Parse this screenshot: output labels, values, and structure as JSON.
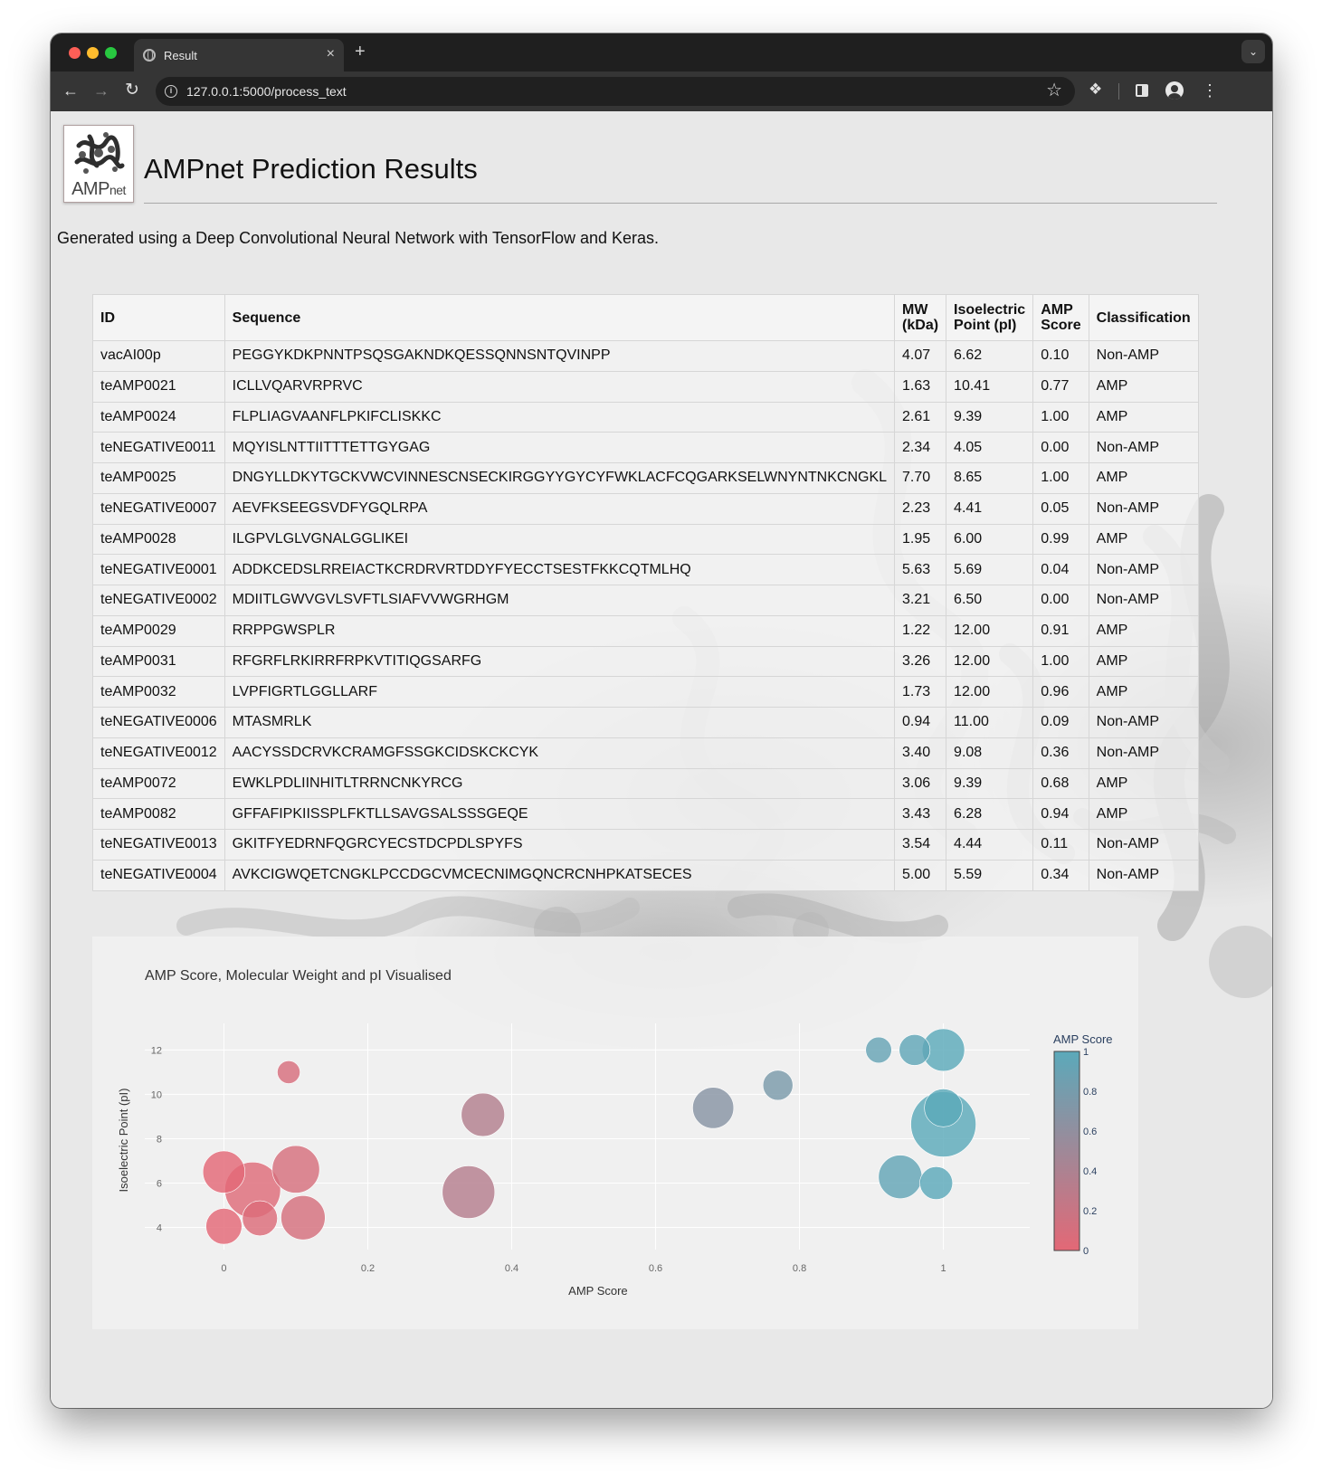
{
  "browser": {
    "tab_title": "Result",
    "url": "127.0.0.1:5000/process_text",
    "new_tab_label": "+",
    "close_label": "×"
  },
  "page": {
    "logo_text_main": "AMP",
    "logo_text_sub": "net",
    "title": "AMPnet Prediction Results",
    "subtitle": "Generated using a Deep Convolutional Neural Network with TensorFlow and Keras."
  },
  "table": {
    "headers": {
      "id": "ID",
      "sequence": "Sequence",
      "mw_line1": "MW",
      "mw_line2": "(kDa)",
      "pi_line1": "Isoelectric",
      "pi_line2": "Point (pI)",
      "score_line1": "AMP",
      "score_line2": "Score",
      "classification": "Classification"
    },
    "rows": [
      {
        "id": "vacAI00p",
        "sequence": "PEGGYKDKPNNTPSQSGAKNDKQESSQNNSNTQVINPP",
        "mw": "4.07",
        "pi": "6.62",
        "score": "0.10",
        "cls": "Non-AMP"
      },
      {
        "id": "teAMP0021",
        "sequence": "ICLLVQARVRPRVC",
        "mw": "1.63",
        "pi": "10.41",
        "score": "0.77",
        "cls": "AMP"
      },
      {
        "id": "teAMP0024",
        "sequence": "FLPLIAGVAANFLPKIFCLISKKC",
        "mw": "2.61",
        "pi": "9.39",
        "score": "1.00",
        "cls": "AMP"
      },
      {
        "id": "teNEGATIVE0011",
        "sequence": "MQYISLNTTIITTTETTGYGAG",
        "mw": "2.34",
        "pi": "4.05",
        "score": "0.00",
        "cls": "Non-AMP"
      },
      {
        "id": "teAMP0025",
        "sequence": "DNGYLLDKYTGCKVWCVINNESCNSECKIRGGYYGYCYFWKLACFCQGARKSELWNYNTNKCNGKL",
        "mw": "7.70",
        "pi": "8.65",
        "score": "1.00",
        "cls": "AMP"
      },
      {
        "id": "teNEGATIVE0007",
        "sequence": "AEVFKSEEGSVDFYGQLRPA",
        "mw": "2.23",
        "pi": "4.41",
        "score": "0.05",
        "cls": "Non-AMP"
      },
      {
        "id": "teAMP0028",
        "sequence": "ILGPVLGLVGNALGGLIKEI",
        "mw": "1.95",
        "pi": "6.00",
        "score": "0.99",
        "cls": "AMP"
      },
      {
        "id": "teNEGATIVE0001",
        "sequence": "ADDKCEDSLRREIACTKCRDRVRTDDYFYECCTSESTFKKCQTMLHQ",
        "mw": "5.63",
        "pi": "5.69",
        "score": "0.04",
        "cls": "Non-AMP"
      },
      {
        "id": "teNEGATIVE0002",
        "sequence": "MDIITLGWVGVLSVFTLSIAFVVWGRHGM",
        "mw": "3.21",
        "pi": "6.50",
        "score": "0.00",
        "cls": "Non-AMP"
      },
      {
        "id": "teAMP0029",
        "sequence": "RRPPGWSPLR",
        "mw": "1.22",
        "pi": "12.00",
        "score": "0.91",
        "cls": "AMP"
      },
      {
        "id": "teAMP0031",
        "sequence": "RFGRFLRKIRRFRPKVTITIQGSARFG",
        "mw": "3.26",
        "pi": "12.00",
        "score": "1.00",
        "cls": "AMP"
      },
      {
        "id": "teAMP0032",
        "sequence": "LVPFIGRTLGGLLARF",
        "mw": "1.73",
        "pi": "12.00",
        "score": "0.96",
        "cls": "AMP"
      },
      {
        "id": "teNEGATIVE0006",
        "sequence": "MTASMRLK",
        "mw": "0.94",
        "pi": "11.00",
        "score": "0.09",
        "cls": "Non-AMP"
      },
      {
        "id": "teNEGATIVE0012",
        "sequence": "AACYSSDCRVKCRAMGFSSGKCIDSKCKCYK",
        "mw": "3.40",
        "pi": "9.08",
        "score": "0.36",
        "cls": "Non-AMP"
      },
      {
        "id": "teAMP0072",
        "sequence": "EWKLPDLIINHITLTRRNCNKYRCG",
        "mw": "3.06",
        "pi": "9.39",
        "score": "0.68",
        "cls": "AMP"
      },
      {
        "id": "teAMP0082",
        "sequence": "GFFAFIPKIISSPLFKTLLSAVGSALSSSGEQE",
        "mw": "3.43",
        "pi": "6.28",
        "score": "0.94",
        "cls": "AMP"
      },
      {
        "id": "teNEGATIVE0013",
        "sequence": "GKITFYEDRNFQGRCYECSTDCPDLSPYFS",
        "mw": "3.54",
        "pi": "4.44",
        "score": "0.11",
        "cls": "Non-AMP"
      },
      {
        "id": "teNEGATIVE0004",
        "sequence": "AVKCIGWQETCNGKLPCCDGCVMCECNIMGQNCRCNHPKATSECES",
        "mw": "5.00",
        "pi": "5.59",
        "score": "0.34",
        "cls": "Non-AMP"
      }
    ]
  },
  "chart_data": {
    "type": "scatter",
    "title": "AMP Score, Molecular Weight and pI Visualised",
    "xlabel": "AMP Score",
    "ylabel": "Isoelectric Point (pI)",
    "xlim": [
      -0.11,
      1.12
    ],
    "ylim": [
      3.0,
      13.2
    ],
    "xticks": [
      0,
      0.2,
      0.4,
      0.6,
      0.8,
      1
    ],
    "xtick_labels": [
      "0",
      "0.2",
      "0.4",
      "0.6",
      "0.8",
      "1"
    ],
    "yticks": [
      4,
      6,
      8,
      10,
      12
    ],
    "ytick_labels": [
      "4",
      "6",
      "8",
      "10",
      "12"
    ],
    "grid": true,
    "size_field": "MW (kDa)",
    "color_field": "AMP Score",
    "colorscale": [
      "#e36876",
      "#5ba9ba"
    ],
    "colorbar": {
      "title": "AMP Score",
      "ticks": [
        0,
        0.2,
        0.4,
        0.6,
        0.8,
        1
      ],
      "tick_labels": [
        "0",
        "0.2",
        "0.4",
        "0.6",
        "0.8",
        "1"
      ]
    },
    "points": [
      {
        "x": 0.1,
        "y": 6.62,
        "size": 4.07
      },
      {
        "x": 0.77,
        "y": 10.41,
        "size": 1.63
      },
      {
        "x": 1.0,
        "y": 9.39,
        "size": 2.61
      },
      {
        "x": 0.0,
        "y": 4.05,
        "size": 2.34
      },
      {
        "x": 1.0,
        "y": 8.65,
        "size": 7.7
      },
      {
        "x": 0.05,
        "y": 4.41,
        "size": 2.23
      },
      {
        "x": 0.99,
        "y": 6.0,
        "size": 1.95
      },
      {
        "x": 0.04,
        "y": 5.69,
        "size": 5.63
      },
      {
        "x": 0.0,
        "y": 6.5,
        "size": 3.21
      },
      {
        "x": 0.91,
        "y": 12.0,
        "size": 1.22
      },
      {
        "x": 1.0,
        "y": 12.0,
        "size": 3.26
      },
      {
        "x": 0.96,
        "y": 12.0,
        "size": 1.73
      },
      {
        "x": 0.09,
        "y": 11.0,
        "size": 0.94
      },
      {
        "x": 0.36,
        "y": 9.08,
        "size": 3.4
      },
      {
        "x": 0.68,
        "y": 9.39,
        "size": 3.06
      },
      {
        "x": 0.94,
        "y": 6.28,
        "size": 3.43
      },
      {
        "x": 0.11,
        "y": 4.44,
        "size": 3.54
      },
      {
        "x": 0.34,
        "y": 5.59,
        "size": 5.0
      }
    ]
  }
}
